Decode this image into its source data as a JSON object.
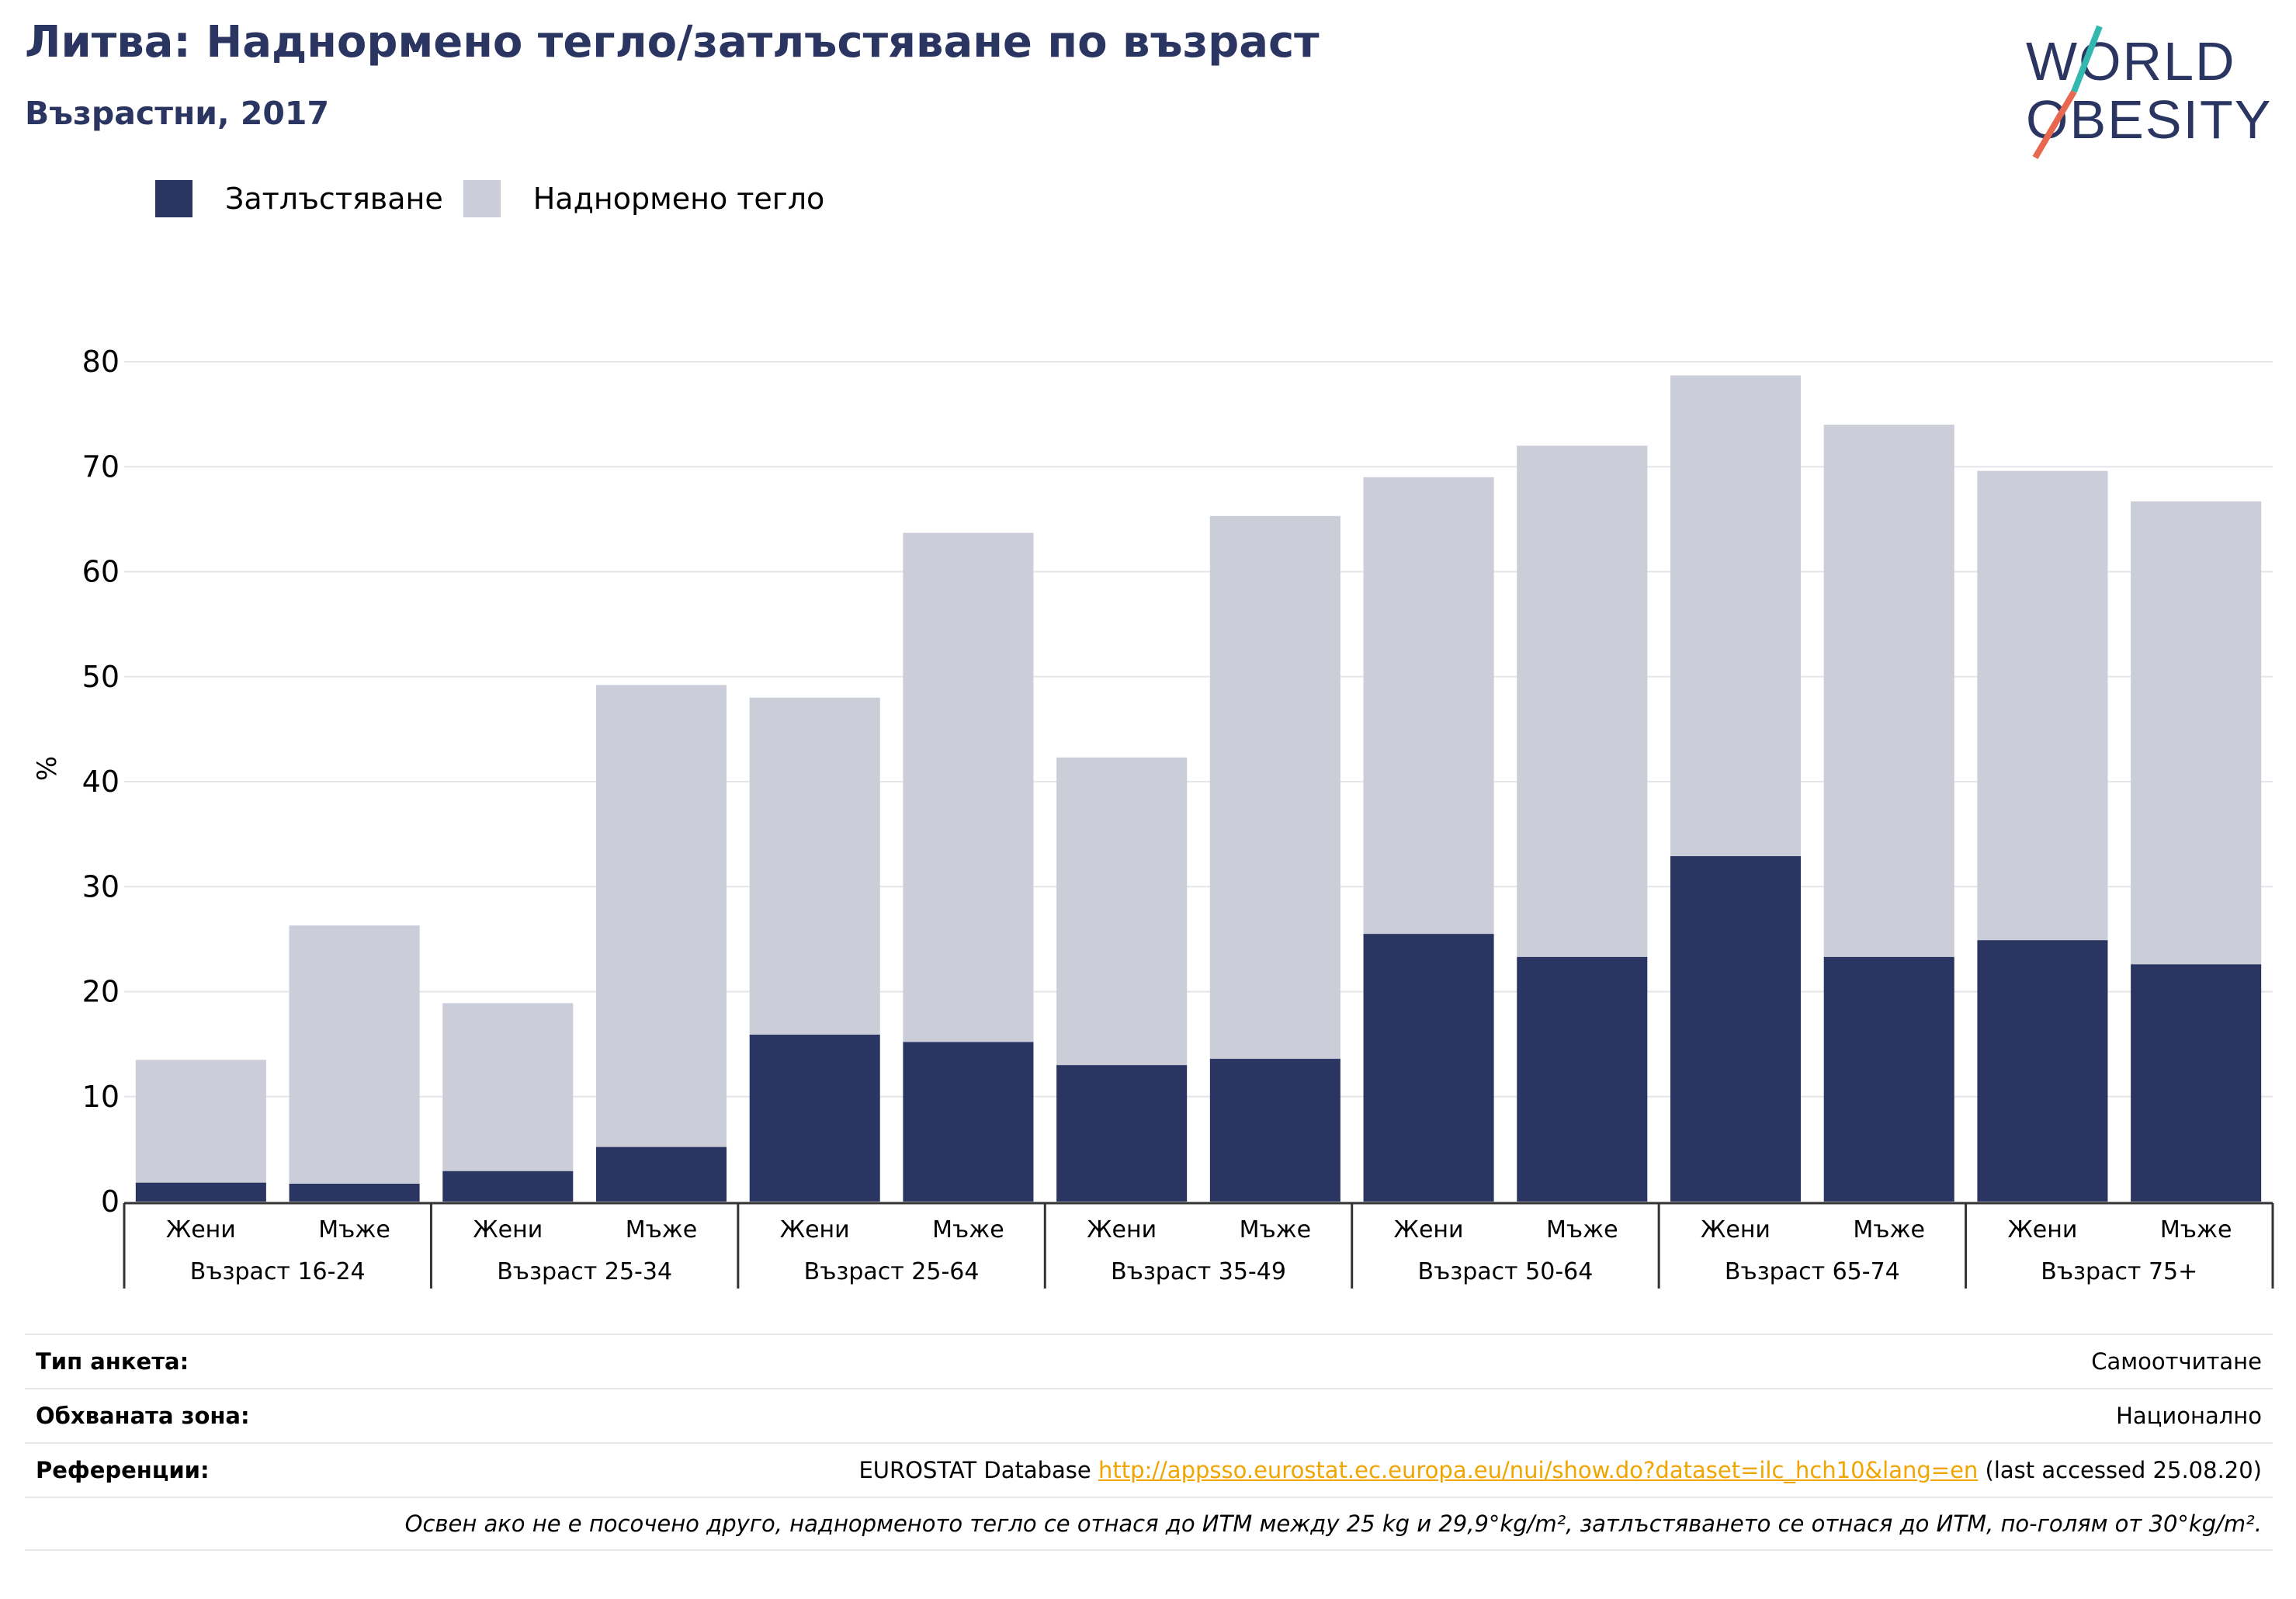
{
  "header": {
    "title": "Литва: Наднормено тегло/затлъстяване по възраст",
    "subtitle": "Възрастни, 2017"
  },
  "logo": {
    "line1": "WORLD",
    "line2": "OBESITY"
  },
  "colors": {
    "obesity": "#2a3561",
    "overweight": "#cbcdd8",
    "title": "#2a3561",
    "link": "#f0a500",
    "grid": "#e6e6ea",
    "axis": "#333333"
  },
  "legend": [
    {
      "label": "Затлъстяване",
      "color": "#2a3561"
    },
    {
      "label": "Наднормено тегло",
      "color": "#cbcdd8"
    }
  ],
  "chart_data": {
    "type": "bar",
    "stacked": true,
    "ylabel": "%",
    "ylim": [
      0,
      80
    ],
    "yticks": [
      0,
      10,
      20,
      30,
      40,
      50,
      60,
      70,
      80
    ],
    "grid": true,
    "legend_position": "top-left",
    "groups": [
      "Възраст 16-24",
      "Възраст 25-34",
      "Възраст 25-64",
      "Възраст 35-49",
      "Възраст 50-64",
      "Възраст 65-74",
      "Възраст 75+"
    ],
    "subcategories": [
      "Жени",
      "Мъже"
    ],
    "series": [
      {
        "name": "Затлъстяване",
        "values": [
          1.8,
          1.7,
          2.9,
          5.2,
          15.9,
          15.2,
          13.0,
          13.6,
          25.5,
          23.3,
          32.9,
          23.3,
          24.9,
          22.6
        ]
      },
      {
        "name": "Наднормено тегло",
        "values": [
          11.7,
          24.6,
          16.0,
          44.0,
          32.1,
          48.5,
          29.3,
          51.7,
          43.5,
          48.7,
          45.8,
          50.7,
          44.7,
          44.1
        ]
      }
    ]
  },
  "footer": {
    "survey_label": "Тип анкета:",
    "survey_value": "Самоотчитане",
    "coverage_label": "Обхваната зона:",
    "coverage_value": "Национално",
    "refs_label": "Референции:",
    "refs_prefix": "EUROSTAT Database ",
    "refs_link": "http://appsso.eurostat.ec.europa.eu/nui/show.do?dataset=ilc_hch10&lang=en",
    "refs_suffix": " (last accessed 25.08.20)",
    "note": "Освен ако не е посочено друго, наднорменото тегло се отнася до ИТМ между 25 kg и 29,9°kg/m², затлъстяването се отнася до ИТМ, по-голям от 30°kg/m²."
  }
}
